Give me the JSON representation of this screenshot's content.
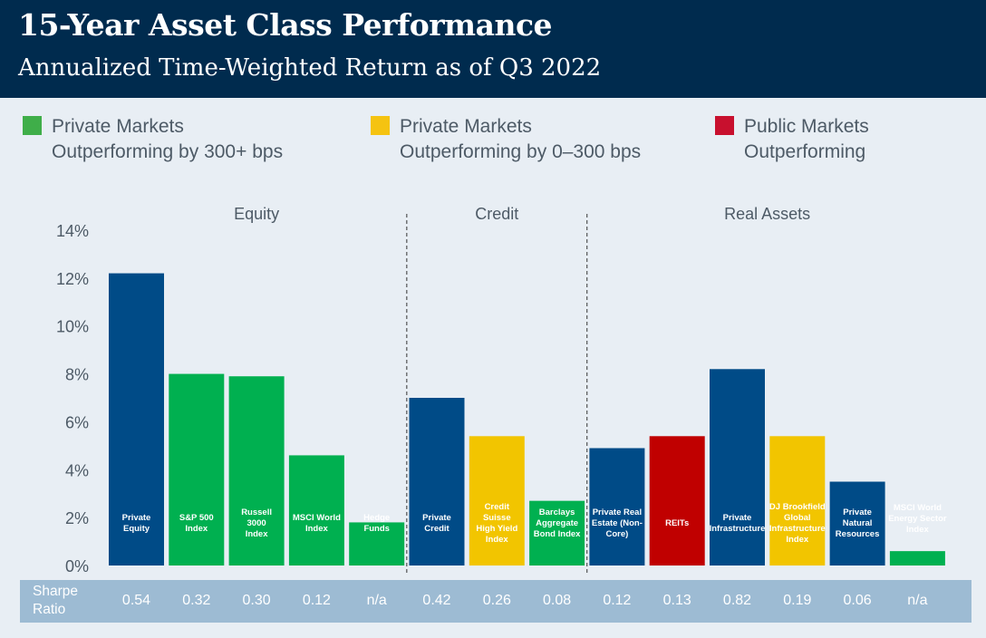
{
  "header": {
    "title": "15-Year Asset Class Performance",
    "subtitle": "Annualized Time-Weighted Return as of Q3 2022"
  },
  "legend": [
    {
      "line1": "Private Markets",
      "line2": "Outperforming by 300+ bps",
      "color": "#3fae49"
    },
    {
      "line1": "Private Markets",
      "line2": "Outperforming by 0–300 bps",
      "color": "#f5c311"
    },
    {
      "line1": "Public Markets",
      "line2": "Outperforming",
      "color": "#c8102e"
    }
  ],
  "sharpe": {
    "label_line1": "Sharpe",
    "label_line2": "Ratio",
    "values": [
      "0.54",
      "0.32",
      "0.30",
      "0.12",
      "n/a",
      "0.42",
      "0.26",
      "0.08",
      "0.12",
      "0.13",
      "0.82",
      "0.19",
      "0.06",
      "n/a"
    ]
  },
  "chart_data": {
    "type": "bar",
    "title": "15-Year Asset Class Performance",
    "subtitle": "Annualized Time-Weighted Return as of Q3 2022",
    "ylim": [
      0,
      14
    ],
    "yticks": [
      "0%",
      "2%",
      "4%",
      "6%",
      "8%",
      "10%",
      "12%",
      "14%"
    ],
    "groups": [
      {
        "name": "Equity",
        "bars": [
          0,
          1,
          2,
          3,
          4
        ]
      },
      {
        "name": "Credit",
        "bars": [
          5,
          6,
          7
        ]
      },
      {
        "name": "Real Assets",
        "bars": [
          8,
          9,
          10,
          11,
          12,
          13
        ]
      }
    ],
    "bars": [
      {
        "label": [
          "Private",
          "Equity"
        ],
        "value": 12.2,
        "color": "#004b87"
      },
      {
        "label": [
          "S&P 500",
          "Index"
        ],
        "value": 8.0,
        "color": "#00b050"
      },
      {
        "label": [
          "Russell",
          "3000",
          "Index"
        ],
        "value": 7.9,
        "color": "#00b050"
      },
      {
        "label": [
          "MSCI World",
          "Index"
        ],
        "value": 4.6,
        "color": "#00b050"
      },
      {
        "label": [
          "Hedge",
          "Funds"
        ],
        "value": 1.8,
        "color": "#00b050"
      },
      {
        "label": [
          "Private",
          "Credit"
        ],
        "value": 7.0,
        "color": "#004b87"
      },
      {
        "label": [
          "Credit",
          "Suisse",
          "High Yield",
          "Index"
        ],
        "value": 5.4,
        "color": "#f2c500"
      },
      {
        "label": [
          "Barclays",
          "Aggregate",
          "Bond Index"
        ],
        "value": 2.7,
        "color": "#00b050"
      },
      {
        "label": [
          "Private Real",
          "Estate (Non-",
          "Core)"
        ],
        "value": 4.9,
        "color": "#004b87"
      },
      {
        "label": [
          "REITs"
        ],
        "value": 5.4,
        "color": "#c00000"
      },
      {
        "label": [
          "Private",
          "Infrastructure"
        ],
        "value": 8.2,
        "color": "#004b87"
      },
      {
        "label": [
          "DJ Brookfield",
          "Global",
          "Infrastructure",
          "Index"
        ],
        "value": 5.4,
        "color": "#f2c500"
      },
      {
        "label": [
          "Private",
          "Natural",
          "Resources"
        ],
        "value": 3.5,
        "color": "#004b87"
      },
      {
        "label": [
          "MSCI World",
          "Energy Sector",
          "Index"
        ],
        "value": 0.6,
        "color": "#00b050"
      }
    ]
  }
}
